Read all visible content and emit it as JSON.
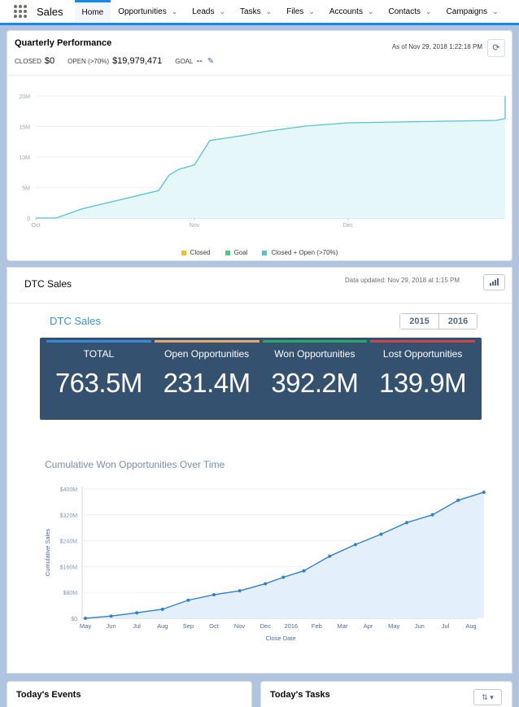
{
  "nav": {
    "app_name": "Sales",
    "items": [
      {
        "label": "Home",
        "active": true,
        "has_menu": false
      },
      {
        "label": "Opportunities",
        "active": false,
        "has_menu": true
      },
      {
        "label": "Leads",
        "active": false,
        "has_menu": true
      },
      {
        "label": "Tasks",
        "active": false,
        "has_menu": true
      },
      {
        "label": "Files",
        "active": false,
        "has_menu": true
      },
      {
        "label": "Accounts",
        "active": false,
        "has_menu": true
      },
      {
        "label": "Contacts",
        "active": false,
        "has_menu": true
      },
      {
        "label": "Campaigns",
        "active": false,
        "has_menu": true
      }
    ],
    "icons": {
      "app_launcher": "waffle-icon",
      "menu": "chevron-down-icon"
    }
  },
  "quarterly": {
    "title": "Quarterly Performance",
    "closed_label": "CLOSED",
    "closed_value": "$0",
    "open_label": "OPEN (>70%)",
    "open_value": "$19,979,471",
    "goal_label": "GOAL",
    "goal_value": "--",
    "as_of": "As of Nov 29, 2018 1:22:18 PM",
    "icons": {
      "edit": "pencil-icon",
      "refresh": "refresh-icon"
    },
    "legend": [
      {
        "label": "Closed",
        "color": "#f4bc25"
      },
      {
        "label": "Goal",
        "color": "#4bca81"
      },
      {
        "label": "Closed + Open (>70%)",
        "color": "#54c2d1"
      }
    ]
  },
  "dtc": {
    "title": "DTC Sales",
    "updated": "Data updated: Nov 29, 2018 at 1:15 PM",
    "icons": {
      "chart": "bar-chart-icon"
    },
    "subtitle": "DTC Sales",
    "years": [
      "2015",
      "2016"
    ],
    "kpis": [
      {
        "label": "TOTAL",
        "value": "763.5M",
        "color": "#3a86d6"
      },
      {
        "label": "Open Opportunities",
        "value": "231.4M",
        "color": "#e4a86c"
      },
      {
        "label": "Won Opportunities",
        "value": "392.2M",
        "color": "#26a866"
      },
      {
        "label": "Lost Opportunities",
        "value": "139.9M",
        "color": "#c9484c"
      }
    ]
  },
  "bottom": {
    "events_title": "Today's Events",
    "tasks_title": "Today's Tasks",
    "icons": {
      "sort": "sort-icon"
    }
  },
  "chart_data": [
    {
      "type": "area",
      "title": "",
      "xlabel": "",
      "ylabel": "",
      "x_ticks": [
        "Oct",
        "Nov",
        "Dec"
      ],
      "y_ticks": [
        "0",
        "5M",
        "10M",
        "15M",
        "20M"
      ],
      "ylim": [
        0,
        22000000
      ],
      "grid": true,
      "series": [
        {
          "name": "Closed + Open (>70%)",
          "color": "#54c2d1",
          "points": [
            [
              "2018-10-01",
              0
            ],
            [
              "2018-10-05",
              0
            ],
            [
              "2018-10-10",
              1500000
            ],
            [
              "2018-10-25",
              4500000
            ],
            [
              "2018-10-27",
              7000000
            ],
            [
              "2018-10-29",
              8000000
            ],
            [
              "2018-11-01",
              8700000
            ],
            [
              "2018-11-04",
              12700000
            ],
            [
              "2018-11-11",
              13600000
            ],
            [
              "2018-11-15",
              14200000
            ],
            [
              "2018-11-23",
              15100000
            ],
            [
              "2018-12-01",
              15600000
            ],
            [
              "2018-12-15",
              15800000
            ],
            [
              "2018-12-30",
              16000000
            ],
            [
              "2019-01-15",
              16300000
            ],
            [
              "2019-01-23",
              17700000
            ],
            [
              "2019-01-29",
              19800000
            ],
            [
              "2019-02-10",
              20000000
            ]
          ]
        }
      ]
    },
    {
      "type": "area",
      "title": "Cumulative Won Opportunities Over Time",
      "xlabel": "Close Date",
      "ylabel": "Cumulative Sales",
      "categories": [
        "May",
        "Jun",
        "Jul",
        "Aug",
        "Sep",
        "Oct",
        "Nov",
        "Dec",
        "2016",
        "Feb",
        "Mar",
        "Apr",
        "May",
        "Jun",
        "Jul",
        "Aug"
      ],
      "y_ticks": [
        "$0.",
        "$80M.",
        "$160M.",
        "$240M.",
        "$320M.",
        "$400M."
      ],
      "ylim": [
        0,
        400
      ],
      "grid": true,
      "series": [
        {
          "name": "",
          "color": "#2f7fcf",
          "points": [
            [
              0,
              0
            ],
            [
              1,
              7
            ],
            [
              2,
              17
            ],
            [
              3,
              28
            ],
            [
              4,
              56
            ],
            [
              5,
              73
            ],
            [
              6,
              85
            ],
            [
              7,
              107
            ],
            [
              7.7,
              127
            ],
            [
              8.5,
              147
            ],
            [
              9.5,
              192
            ],
            [
              10.5,
              228
            ],
            [
              11.5,
              260
            ],
            [
              12.5,
              296
            ],
            [
              13.5,
              320
            ],
            [
              14.5,
              365
            ],
            [
              15.5,
              390
            ]
          ]
        }
      ]
    }
  ]
}
